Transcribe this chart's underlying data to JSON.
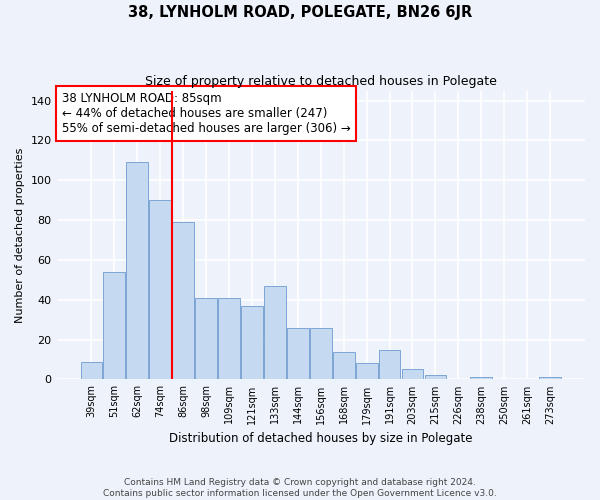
{
  "title": "38, LYNHOLM ROAD, POLEGATE, BN26 6JR",
  "subtitle": "Size of property relative to detached houses in Polegate",
  "xlabel": "Distribution of detached houses by size in Polegate",
  "ylabel": "Number of detached properties",
  "categories": [
    "39sqm",
    "51sqm",
    "62sqm",
    "74sqm",
    "86sqm",
    "98sqm",
    "109sqm",
    "121sqm",
    "133sqm",
    "144sqm",
    "156sqm",
    "168sqm",
    "179sqm",
    "191sqm",
    "203sqm",
    "215sqm",
    "226sqm",
    "238sqm",
    "250sqm",
    "261sqm",
    "273sqm"
  ],
  "values": [
    9,
    54,
    109,
    90,
    79,
    41,
    41,
    37,
    47,
    26,
    26,
    14,
    8,
    15,
    5,
    2,
    0,
    1,
    0,
    0,
    1
  ],
  "bar_color": "#c5d9f1",
  "bar_edge_color": "#7da6d4",
  "vline_color": "red",
  "vline_label_title": "38 LYNHOLM ROAD: 85sqm",
  "vline_label_line1": "← 44% of detached houses are smaller (247)",
  "vline_label_line2": "55% of semi-detached houses are larger (306) →",
  "annotation_box_facecolor": "white",
  "annotation_box_edgecolor": "red",
  "ylim": [
    0,
    145
  ],
  "yticks": [
    0,
    20,
    40,
    60,
    80,
    100,
    120,
    140
  ],
  "footer_line1": "Contains HM Land Registry data © Crown copyright and database right 2024.",
  "footer_line2": "Contains public sector information licensed under the Open Government Licence v3.0.",
  "bg_color": "#eef3fb",
  "grid_color": "#ffffff"
}
